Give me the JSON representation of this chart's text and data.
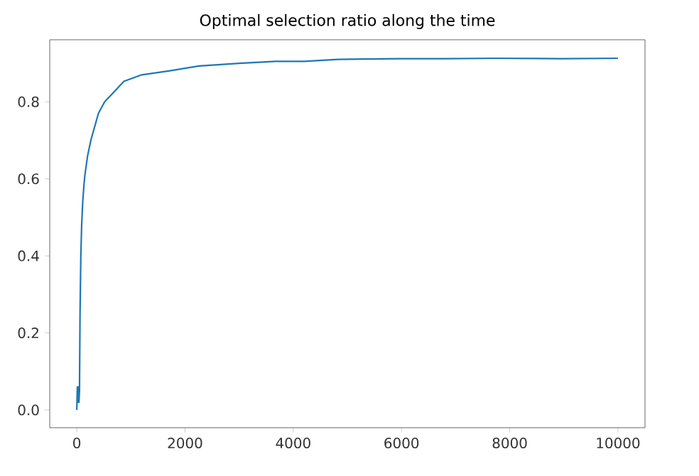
{
  "chart_data": {
    "type": "line",
    "title": "Optimal selection ratio along the time",
    "x": [
      0,
      10,
      20,
      30,
      40,
      50,
      60,
      75,
      90,
      110,
      130,
      150,
      200,
      260,
      320,
      400,
      515,
      650,
      870,
      1200,
      1700,
      2260,
      3000,
      3670,
      4200,
      4820,
      5960,
      6800,
      7730,
      8960,
      10000
    ],
    "series": [
      {
        "color": "#1f77b4",
        "values": [
          0.0,
          0.06,
          0.02,
          0.06,
          0.02,
          0.05,
          0.25,
          0.4,
          0.48,
          0.54,
          0.58,
          0.61,
          0.66,
          0.7,
          0.73,
          0.77,
          0.8,
          0.82,
          0.853,
          0.87,
          0.88,
          0.893,
          0.9,
          0.905,
          0.905,
          0.91,
          0.912,
          0.912,
          0.913,
          0.912,
          0.913
        ]
      }
    ],
    "xlim": [
      -500,
      10500
    ],
    "ylim": [
      -0.046,
      0.961
    ],
    "xticks": [
      0,
      2000,
      4000,
      6000,
      8000,
      10000
    ],
    "yticks": [
      {
        "value": 0,
        "label": "0.0"
      },
      {
        "value": 0.2,
        "label": "0.2"
      },
      {
        "value": 0.4,
        "label": "0.4"
      },
      {
        "value": 0.6,
        "label": "0.6"
      },
      {
        "value": 0.8,
        "label": "0.8"
      }
    ],
    "grid": false,
    "marker": "none",
    "line_style": "solid"
  }
}
